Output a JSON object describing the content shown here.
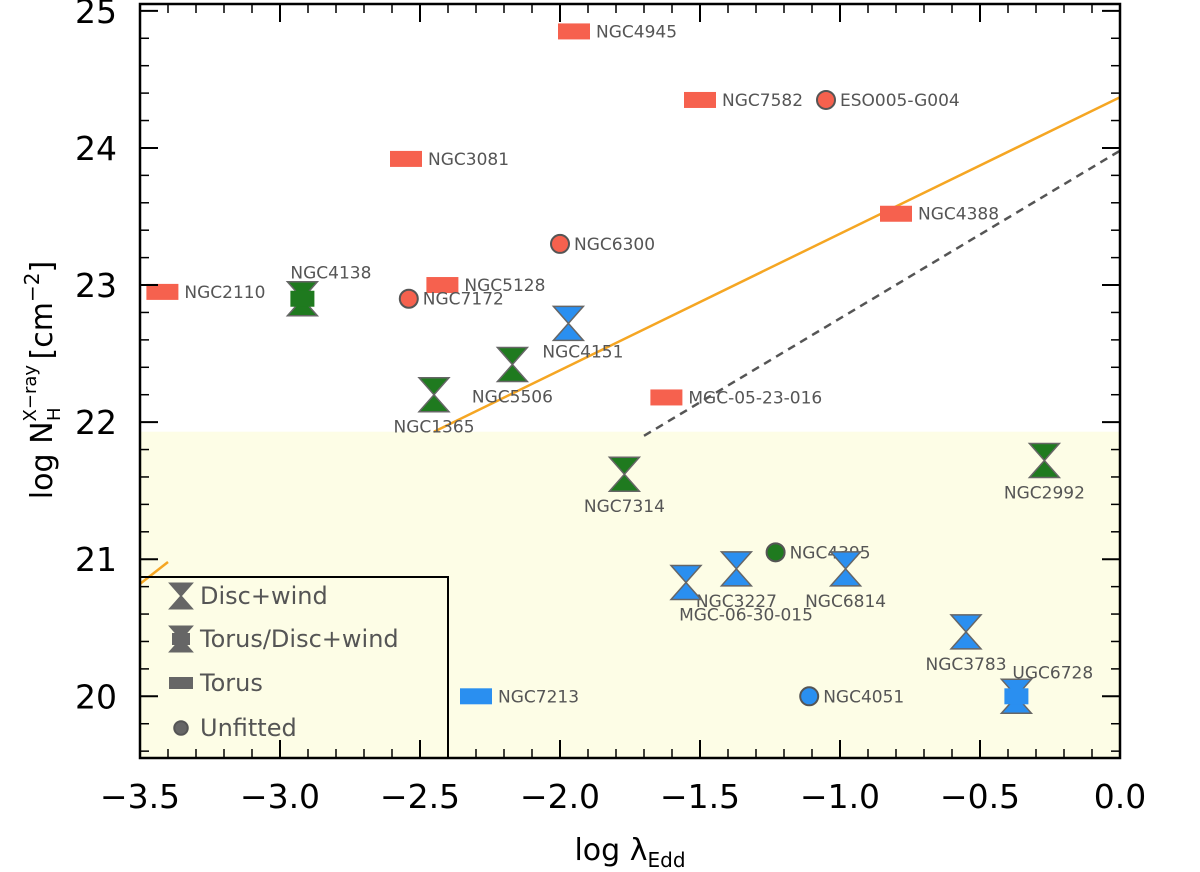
{
  "chart_data": {
    "type": "scatter",
    "xlabel": "log λ_Edd",
    "xlabel_main": "log λ",
    "xlabel_sub": "Edd",
    "ylabel_main": "log N",
    "ylabel_sub": "H",
    "ylabel_sup": "X−ray",
    "ylabel_unit_open": "[cm",
    "ylabel_unit_sup": "−2",
    "ylabel_unit_close": "]",
    "xlim": [
      -3.5,
      0.0
    ],
    "ylim": [
      19.55,
      25.05
    ],
    "x_ticks": [
      -3.5,
      -3.0,
      -2.5,
      -2.0,
      -1.5,
      -1.0,
      -0.5,
      0.0
    ],
    "x_tick_labels": [
      "−3.5",
      "−3.0",
      "−2.5",
      "−2.0",
      "−1.5",
      "−1.0",
      "−0.5",
      "0.0"
    ],
    "y_ticks": [
      20,
      21,
      22,
      23,
      24,
      25
    ],
    "y_tick_labels": [
      "20",
      "21",
      "22",
      "23",
      "24",
      "25"
    ],
    "shaded_region": {
      "ymax": 21.93,
      "color": "#fdfde6"
    },
    "lines": [
      {
        "name": "solid",
        "x": [
          -2.45,
          0.0
        ],
        "y": [
          21.93,
          24.37
        ],
        "color": "#f5a623",
        "dash": false
      },
      {
        "name": "left-segment",
        "x": [
          -3.5,
          -3.4
        ],
        "y": [
          20.82,
          20.98
        ],
        "color": "#f5a623",
        "dash": false
      },
      {
        "name": "dashed",
        "x": [
          -1.7,
          0.0
        ],
        "y": [
          21.9,
          23.98
        ],
        "color": "#555555",
        "dash": true
      }
    ],
    "colors": {
      "obscured": "#f6614e",
      "green": "#1f7a1f",
      "blue": "#2a8ff0"
    },
    "legend": {
      "position": "bottom-left",
      "entries": [
        {
          "label": "Disc+wind",
          "marker": "hourglass"
        },
        {
          "label": "Torus/Disc+wind",
          "marker": "torus-disc"
        },
        {
          "label": "Torus",
          "marker": "rect"
        },
        {
          "label": "Unfitted",
          "marker": "circle"
        }
      ]
    },
    "points": [
      {
        "name": "NGC4945",
        "x": -1.95,
        "y": 24.85,
        "marker": "rect",
        "color": "obscured",
        "label_pos": "right"
      },
      {
        "name": "NGC7582",
        "x": -1.5,
        "y": 24.35,
        "marker": "rect",
        "color": "obscured",
        "label_pos": "right"
      },
      {
        "name": "ESO005-G004",
        "x": -1.05,
        "y": 24.35,
        "marker": "circle",
        "color": "obscured",
        "label_pos": "right"
      },
      {
        "name": "NGC3081",
        "x": -2.55,
        "y": 23.92,
        "marker": "rect",
        "color": "obscured",
        "label_pos": "right"
      },
      {
        "name": "NGC4388",
        "x": -0.8,
        "y": 23.52,
        "marker": "rect",
        "color": "obscured",
        "label_pos": "right"
      },
      {
        "name": "NGC6300",
        "x": -2.0,
        "y": 23.3,
        "marker": "circle",
        "color": "obscured",
        "label_pos": "right"
      },
      {
        "name": "NGC5128",
        "x": -2.42,
        "y": 23.0,
        "marker": "rect",
        "color": "obscured",
        "label_pos": "right"
      },
      {
        "name": "NGC2110",
        "x": -3.42,
        "y": 22.95,
        "marker": "rect",
        "color": "obscured",
        "label_pos": "right"
      },
      {
        "name": "NGC7172",
        "x": -2.54,
        "y": 22.9,
        "marker": "circle",
        "color": "obscured",
        "label_pos": "right"
      },
      {
        "name": "NGC4138",
        "x": -2.92,
        "y": 22.9,
        "marker": "torus-disc",
        "color": "green",
        "label_pos": "above"
      },
      {
        "name": "NGC4151",
        "x": -1.97,
        "y": 22.72,
        "marker": "hourglass",
        "color": "blue",
        "label_pos": "below-right"
      },
      {
        "name": "NGC5506",
        "x": -2.17,
        "y": 22.42,
        "marker": "hourglass",
        "color": "green",
        "label_pos": "below"
      },
      {
        "name": "NGC1365",
        "x": -2.45,
        "y": 22.2,
        "marker": "hourglass",
        "color": "green",
        "label_pos": "below"
      },
      {
        "name": "MGC-05-23-016",
        "x": -1.62,
        "y": 22.18,
        "marker": "rect",
        "color": "obscured",
        "label_pos": "right"
      },
      {
        "name": "NGC7314",
        "x": -1.77,
        "y": 21.62,
        "marker": "hourglass",
        "color": "green",
        "label_pos": "below"
      },
      {
        "name": "NGC2992",
        "x": -0.27,
        "y": 21.72,
        "marker": "hourglass",
        "color": "green",
        "label_pos": "below"
      },
      {
        "name": "NGC4395",
        "x": -1.23,
        "y": 21.05,
        "marker": "circle",
        "color": "green",
        "label_pos": "right"
      },
      {
        "name": "NGC3227",
        "x": -1.37,
        "y": 20.93,
        "marker": "hourglass",
        "color": "blue",
        "label_pos": "below"
      },
      {
        "name": "NGC6814",
        "x": -0.98,
        "y": 20.93,
        "marker": "hourglass",
        "color": "blue",
        "label_pos": "below"
      },
      {
        "name": "MGC-06-30-015",
        "x": -1.55,
        "y": 20.83,
        "marker": "hourglass",
        "color": "blue",
        "label_pos": "below-wide"
      },
      {
        "name": "NGC3783",
        "x": -0.55,
        "y": 20.47,
        "marker": "hourglass",
        "color": "blue",
        "label_pos": "below"
      },
      {
        "name": "NGC7213",
        "x": -2.3,
        "y": 20.0,
        "marker": "rect",
        "color": "blue",
        "label_pos": "right"
      },
      {
        "name": "NGC4051",
        "x": -1.11,
        "y": 20.0,
        "marker": "circle",
        "color": "blue",
        "label_pos": "right"
      },
      {
        "name": "UGC6728",
        "x": -0.37,
        "y": 20.0,
        "marker": "torus-disc",
        "color": "blue",
        "label_pos": "above-right"
      }
    ]
  }
}
